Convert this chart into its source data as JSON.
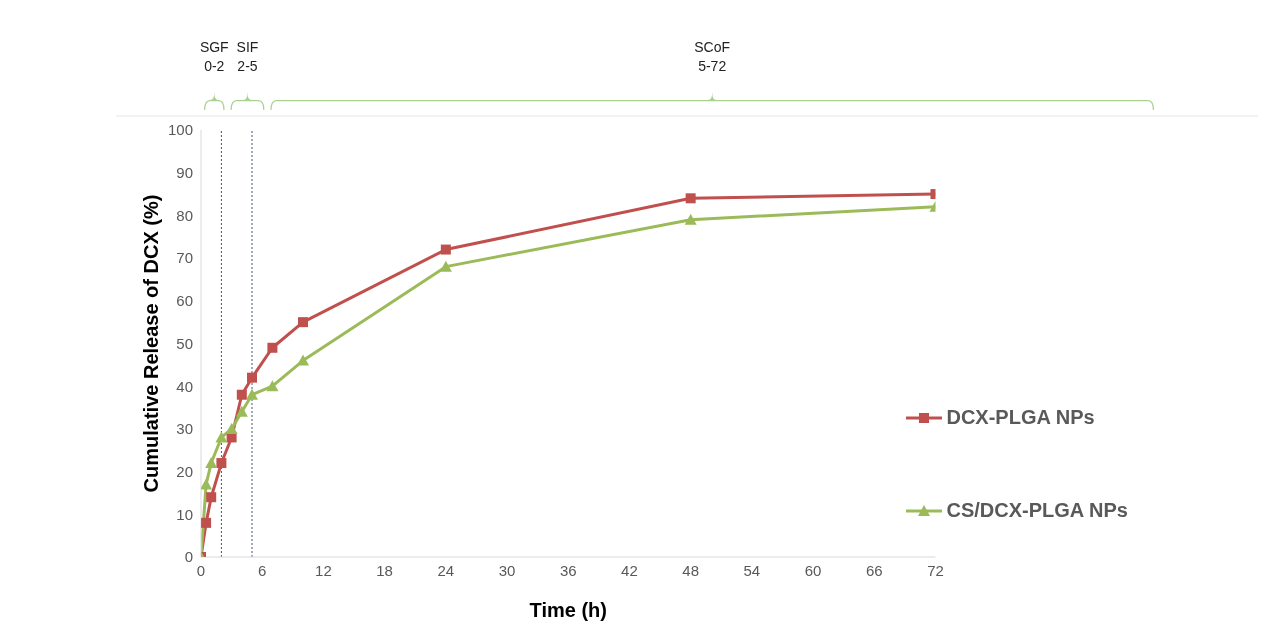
{
  "chart_data": {
    "type": "line",
    "xlabel": "Time (h)",
    "ylabel": "Cumulative Release of DCX (%)",
    "x": [
      0,
      0.5,
      1,
      2,
      3,
      4,
      5,
      7,
      10,
      24,
      48,
      72
    ],
    "series": [
      {
        "name": "DCX-PLGA NPs",
        "color": "#c0504d",
        "marker": "square",
        "values": [
          0,
          8,
          14,
          22,
          28,
          38,
          42,
          49,
          55,
          72,
          84,
          85
        ]
      },
      {
        "name": "CS/DCX-PLGA NPs",
        "color": "#9bbb59",
        "marker": "triangle",
        "values": [
          0,
          17,
          22,
          28,
          30,
          34,
          38,
          40,
          46,
          68,
          79,
          82
        ]
      }
    ],
    "xlim": [
      0,
      72
    ],
    "xticks": [
      0,
      6,
      12,
      18,
      24,
      30,
      36,
      42,
      48,
      54,
      60,
      66,
      72
    ],
    "ylim": [
      0,
      100
    ],
    "yticks": [
      0,
      10,
      20,
      30,
      40,
      50,
      60,
      70,
      80,
      90,
      100
    ],
    "grid": false,
    "legend": "right",
    "line_style": "solid",
    "ref_lines": [
      {
        "axis": "x",
        "value": 2,
        "color": "#44546a",
        "line_style": "dotted"
      },
      {
        "axis": "x",
        "value": 5,
        "color": "#44546a",
        "line_style": "dotted"
      }
    ],
    "annotations": [
      "SGF 0-2",
      "SIF 2-5",
      "SCoF 5-72"
    ]
  }
}
